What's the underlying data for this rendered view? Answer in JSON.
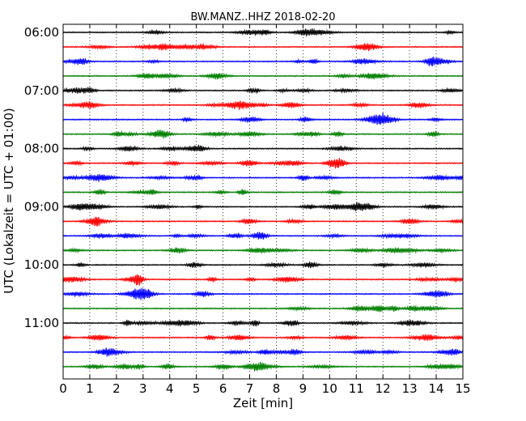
{
  "chart_data": {
    "type": "line",
    "title": "BW.MANZ..HHZ 2018-02-20",
    "xlabel": "Zeit  [min]",
    "ylabel": "UTC (Lokalzeit = UTC + 01:00)",
    "xlim": [
      0,
      15
    ],
    "x_ticks": [
      "0",
      "1",
      "2",
      "3",
      "4",
      "5",
      "6",
      "7",
      "8",
      "9",
      "10",
      "11",
      "12",
      "13",
      "14",
      "15"
    ],
    "y_ticks": [
      "06:00",
      "07:00",
      "08:00",
      "09:00",
      "10:00",
      "11:00"
    ],
    "grid": "vertical dotted at each minute",
    "trace_colors": [
      "#000000",
      "#ff0000",
      "#0000ff",
      "#008000"
    ],
    "series": [
      {
        "start": "06:00"
      },
      {
        "start": "06:15"
      },
      {
        "start": "06:30"
      },
      {
        "start": "06:45"
      },
      {
        "start": "07:00"
      },
      {
        "start": "07:15"
      },
      {
        "start": "07:30"
      },
      {
        "start": "07:45"
      },
      {
        "start": "08:00"
      },
      {
        "start": "08:15"
      },
      {
        "start": "08:30"
      },
      {
        "start": "08:45"
      },
      {
        "start": "09:00"
      },
      {
        "start": "09:15"
      },
      {
        "start": "09:30"
      },
      {
        "start": "09:45"
      },
      {
        "start": "10:00"
      },
      {
        "start": "10:15"
      },
      {
        "start": "10:30"
      },
      {
        "start": "10:45"
      },
      {
        "start": "11:00"
      },
      {
        "start": "11:15"
      },
      {
        "start": "11:30"
      },
      {
        "start": "11:45"
      }
    ]
  }
}
